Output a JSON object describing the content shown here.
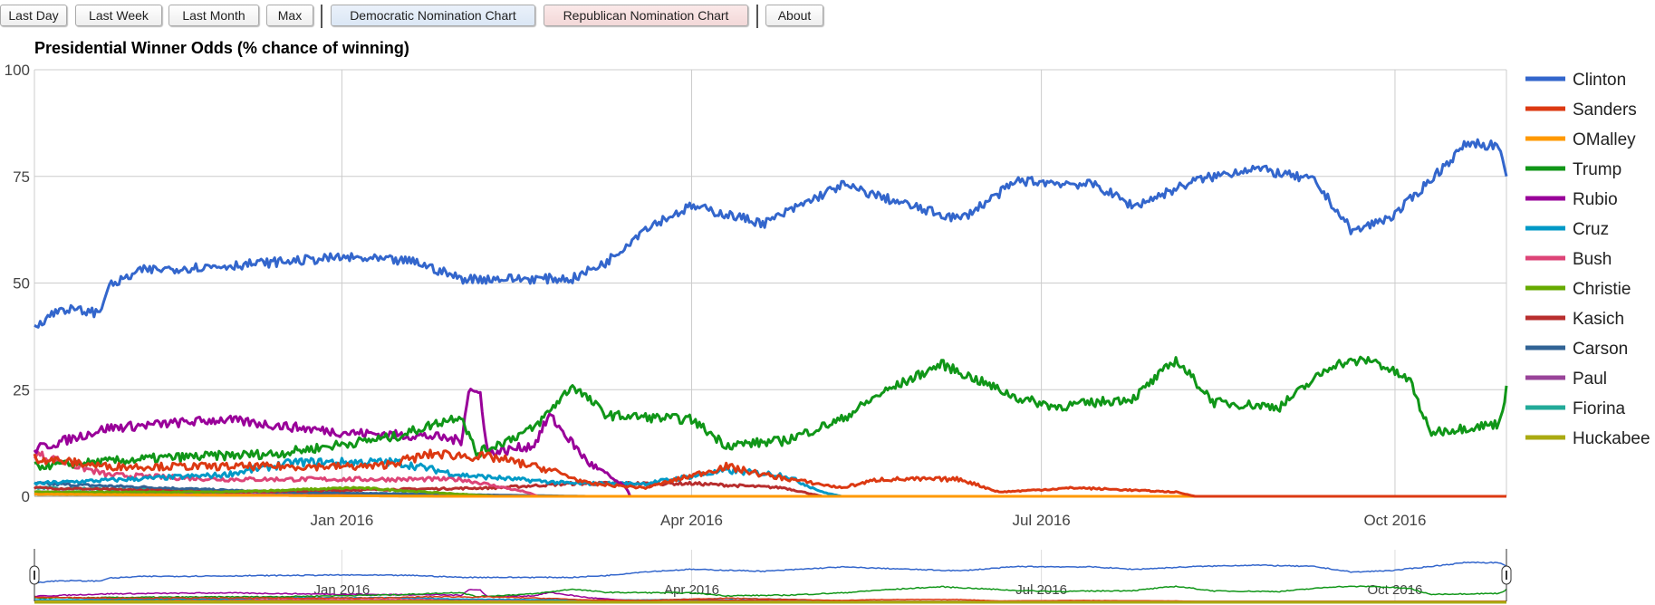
{
  "toolbar": {
    "buttons": [
      "Last Day",
      "Last Week",
      "Last Month",
      "Max"
    ],
    "dem_label": "Democratic Nomination Chart",
    "rep_label": "Republican Nomination Chart",
    "about_label": "About"
  },
  "chart_data": {
    "type": "line",
    "title": "Presidential Winner Odds (% chance of winning)",
    "xlabel": "",
    "ylabel": "",
    "xlim": [
      "2015-10-13",
      "2016-10-30"
    ],
    "ylim": [
      0,
      100
    ],
    "y_ticks": [
      "0",
      "25",
      "50",
      "75",
      "100"
    ],
    "y_tick_values": [
      0,
      25,
      50,
      75,
      100
    ],
    "x_ticks": [
      {
        "date": "2016-01-01",
        "label": "Jan 2016"
      },
      {
        "date": "2016-04-01",
        "label": "Apr 2016"
      },
      {
        "date": "2016-07-01",
        "label": "Jul 2016"
      },
      {
        "date": "2016-10-01",
        "label": "Oct 2016"
      }
    ],
    "grid": true,
    "legend_position": "right",
    "navigator": true,
    "series": [
      {
        "name": "Clinton",
        "color": "#3366cc",
        "points": [
          [
            "2015-10-13",
            40
          ],
          [
            "2015-10-20",
            44
          ],
          [
            "2015-10-30",
            43
          ],
          [
            "2015-11-01",
            49
          ],
          [
            "2015-11-10",
            53
          ],
          [
            "2015-12-01",
            54
          ],
          [
            "2016-01-01",
            56
          ],
          [
            "2016-01-20",
            55
          ],
          [
            "2016-02-01",
            51
          ],
          [
            "2016-03-01",
            51
          ],
          [
            "2016-03-10",
            55
          ],
          [
            "2016-03-20",
            63
          ],
          [
            "2016-04-01",
            68
          ],
          [
            "2016-04-20",
            64
          ],
          [
            "2016-05-10",
            73
          ],
          [
            "2016-06-01",
            67
          ],
          [
            "2016-06-10",
            65
          ],
          [
            "2016-06-25",
            74
          ],
          [
            "2016-07-15",
            73
          ],
          [
            "2016-07-25",
            68
          ],
          [
            "2016-08-10",
            74
          ],
          [
            "2016-08-25",
            77
          ],
          [
            "2016-09-10",
            74
          ],
          [
            "2016-09-20",
            62
          ],
          [
            "2016-10-01",
            66
          ],
          [
            "2016-10-10",
            74
          ],
          [
            "2016-10-20",
            83
          ],
          [
            "2016-10-28",
            82
          ],
          [
            "2016-10-30",
            74
          ]
        ]
      },
      {
        "name": "Sanders",
        "color": "#dc3912",
        "points": [
          [
            "2015-10-13",
            9
          ],
          [
            "2015-11-01",
            7
          ],
          [
            "2015-12-01",
            7
          ],
          [
            "2016-01-10",
            7
          ],
          [
            "2016-01-25",
            10
          ],
          [
            "2016-02-10",
            9
          ],
          [
            "2016-02-25",
            6
          ],
          [
            "2016-03-05",
            3
          ],
          [
            "2016-03-20",
            2
          ],
          [
            "2016-04-10",
            7
          ],
          [
            "2016-04-20",
            5
          ],
          [
            "2016-05-10",
            2
          ],
          [
            "2016-05-20",
            4
          ],
          [
            "2016-06-10",
            4
          ],
          [
            "2016-06-20",
            1
          ],
          [
            "2016-07-10",
            2
          ],
          [
            "2016-08-05",
            1
          ],
          [
            "2016-08-10",
            0
          ],
          [
            "2016-10-30",
            0
          ]
        ]
      },
      {
        "name": "OMalley",
        "color": "#ff9900",
        "points": [
          [
            "2015-10-13",
            0.5
          ],
          [
            "2016-02-01",
            0
          ],
          [
            "2016-10-30",
            0
          ]
        ]
      },
      {
        "name": "Trump",
        "color": "#109618",
        "points": [
          [
            "2015-10-13",
            7
          ],
          [
            "2015-11-15",
            9
          ],
          [
            "2015-12-15",
            10
          ],
          [
            "2016-01-15",
            14
          ],
          [
            "2016-02-01",
            19
          ],
          [
            "2016-02-05",
            10
          ],
          [
            "2016-02-20",
            16
          ],
          [
            "2016-03-01",
            26
          ],
          [
            "2016-03-10",
            19
          ],
          [
            "2016-04-01",
            18
          ],
          [
            "2016-04-10",
            12
          ],
          [
            "2016-04-25",
            13
          ],
          [
            "2016-05-10",
            18
          ],
          [
            "2016-05-20",
            24
          ],
          [
            "2016-06-05",
            31
          ],
          [
            "2016-06-25",
            23
          ],
          [
            "2016-07-05",
            21
          ],
          [
            "2016-07-25",
            23
          ],
          [
            "2016-08-05",
            32
          ],
          [
            "2016-08-15",
            22
          ],
          [
            "2016-09-01",
            21
          ],
          [
            "2016-09-15",
            31
          ],
          [
            "2016-09-25",
            32
          ],
          [
            "2016-10-05",
            27
          ],
          [
            "2016-10-10",
            15
          ],
          [
            "2016-10-28",
            17
          ],
          [
            "2016-10-30",
            25
          ]
        ]
      },
      {
        "name": "Rubio",
        "color": "#990099",
        "points": [
          [
            "2015-10-13",
            11
          ],
          [
            "2015-11-01",
            16
          ],
          [
            "2015-12-01",
            18
          ],
          [
            "2016-01-01",
            15
          ],
          [
            "2016-01-25",
            14
          ],
          [
            "2016-02-01",
            13
          ],
          [
            "2016-02-03",
            25
          ],
          [
            "2016-02-06",
            24
          ],
          [
            "2016-02-08",
            10
          ],
          [
            "2016-02-20",
            12
          ],
          [
            "2016-02-24",
            19
          ],
          [
            "2016-03-05",
            8
          ],
          [
            "2016-03-15",
            2
          ],
          [
            "2016-03-16",
            0
          ],
          [
            "2016-10-30",
            0
          ]
        ]
      },
      {
        "name": "Cruz",
        "color": "#0099c6",
        "points": [
          [
            "2015-10-13",
            3
          ],
          [
            "2015-12-01",
            5
          ],
          [
            "2015-12-20",
            8
          ],
          [
            "2016-01-15",
            8
          ],
          [
            "2016-02-01",
            5
          ],
          [
            "2016-02-15",
            4
          ],
          [
            "2016-03-01",
            3
          ],
          [
            "2016-03-20",
            3
          ],
          [
            "2016-04-10",
            6
          ],
          [
            "2016-04-25",
            5
          ],
          [
            "2016-05-05",
            1
          ],
          [
            "2016-05-10",
            0
          ],
          [
            "2016-10-30",
            0
          ]
        ]
      },
      {
        "name": "Bush",
        "color": "#dd4477",
        "points": [
          [
            "2015-10-13",
            10
          ],
          [
            "2015-11-01",
            5
          ],
          [
            "2015-12-01",
            4
          ],
          [
            "2016-01-10",
            4
          ],
          [
            "2016-02-01",
            4
          ],
          [
            "2016-02-18",
            1
          ],
          [
            "2016-02-21",
            0
          ],
          [
            "2016-10-30",
            0
          ]
        ]
      },
      {
        "name": "Christie",
        "color": "#66aa00",
        "points": [
          [
            "2015-10-13",
            1
          ],
          [
            "2015-12-01",
            1
          ],
          [
            "2016-01-05",
            2
          ],
          [
            "2016-02-10",
            0
          ],
          [
            "2016-10-30",
            0
          ]
        ]
      },
      {
        "name": "Kasich",
        "color": "#b82e2e",
        "points": [
          [
            "2015-10-13",
            2
          ],
          [
            "2015-12-01",
            1
          ],
          [
            "2016-02-10",
            2
          ],
          [
            "2016-03-01",
            3
          ],
          [
            "2016-03-20",
            3
          ],
          [
            "2016-04-01",
            3
          ],
          [
            "2016-04-25",
            2
          ],
          [
            "2016-05-05",
            0
          ],
          [
            "2016-10-30",
            0
          ]
        ]
      },
      {
        "name": "Carson",
        "color": "#316395",
        "points": [
          [
            "2015-10-13",
            3
          ],
          [
            "2015-11-15",
            2
          ],
          [
            "2015-12-15",
            1
          ],
          [
            "2016-03-05",
            0
          ],
          [
            "2016-10-30",
            0
          ]
        ]
      },
      {
        "name": "Paul",
        "color": "#994499",
        "points": [
          [
            "2015-10-13",
            1
          ],
          [
            "2016-02-03",
            0
          ],
          [
            "2016-10-30",
            0
          ]
        ]
      },
      {
        "name": "Fiorina",
        "color": "#22aa99",
        "points": [
          [
            "2015-10-13",
            2
          ],
          [
            "2016-02-10",
            0
          ],
          [
            "2016-10-30",
            0
          ]
        ]
      },
      {
        "name": "Huckabee",
        "color": "#aaaa11",
        "points": [
          [
            "2015-10-13",
            0.5
          ],
          [
            "2016-02-01",
            0
          ],
          [
            "2016-10-30",
            0
          ]
        ]
      }
    ]
  }
}
